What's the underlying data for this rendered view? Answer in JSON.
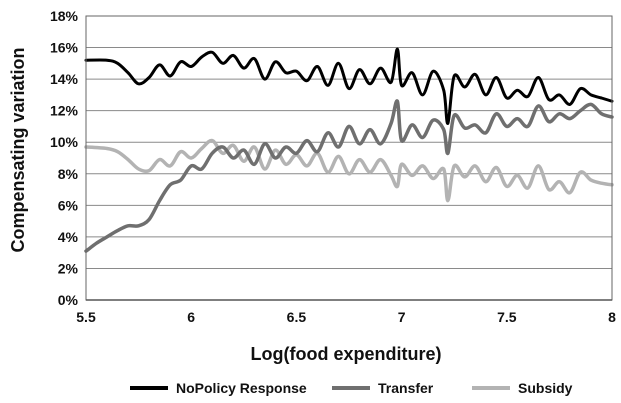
{
  "chart_data": {
    "type": "line",
    "title": "",
    "xlabel": "Log(food expenditure)",
    "ylabel": "Compensating variation",
    "xlim": [
      5.5,
      8
    ],
    "ylim": [
      0,
      0.18
    ],
    "x_ticks": [
      "5.5",
      "6",
      "6.5",
      "7",
      "7.5",
      "8"
    ],
    "y_ticks": [
      "0%",
      "2%",
      "4%",
      "6%",
      "8%",
      "10%",
      "12%",
      "14%",
      "16%",
      "18%"
    ],
    "grid": "horizontal",
    "legend_position": "bottom",
    "series": [
      {
        "name": "NoPolicy Response",
        "color": "#000000",
        "x": [
          5.5,
          5.6,
          5.65,
          5.7,
          5.75,
          5.8,
          5.85,
          5.9,
          5.95,
          6.0,
          6.05,
          6.1,
          6.15,
          6.2,
          6.25,
          6.3,
          6.35,
          6.4,
          6.45,
          6.5,
          6.55,
          6.6,
          6.65,
          6.7,
          6.75,
          6.8,
          6.85,
          6.9,
          6.95,
          6.98,
          7.0,
          7.05,
          7.1,
          7.15,
          7.2,
          7.22,
          7.25,
          7.3,
          7.35,
          7.4,
          7.45,
          7.5,
          7.55,
          7.6,
          7.65,
          7.7,
          7.75,
          7.8,
          7.85,
          7.9,
          7.95,
          8.0
        ],
        "y": [
          0.152,
          0.152,
          0.15,
          0.144,
          0.137,
          0.141,
          0.149,
          0.142,
          0.151,
          0.148,
          0.154,
          0.157,
          0.15,
          0.155,
          0.147,
          0.153,
          0.14,
          0.151,
          0.144,
          0.145,
          0.139,
          0.148,
          0.136,
          0.15,
          0.134,
          0.146,
          0.137,
          0.147,
          0.138,
          0.159,
          0.136,
          0.144,
          0.13,
          0.145,
          0.133,
          0.112,
          0.142,
          0.135,
          0.143,
          0.13,
          0.141,
          0.128,
          0.133,
          0.129,
          0.141,
          0.127,
          0.13,
          0.124,
          0.134,
          0.13,
          0.128,
          0.126
        ]
      },
      {
        "name": "Transfer",
        "color": "#6f6f6f",
        "x": [
          5.5,
          5.55,
          5.6,
          5.65,
          5.7,
          5.75,
          5.8,
          5.85,
          5.9,
          5.95,
          6.0,
          6.05,
          6.1,
          6.15,
          6.2,
          6.25,
          6.3,
          6.35,
          6.4,
          6.45,
          6.5,
          6.55,
          6.6,
          6.65,
          6.7,
          6.75,
          6.8,
          6.85,
          6.9,
          6.95,
          6.98,
          7.0,
          7.05,
          7.1,
          7.15,
          7.2,
          7.22,
          7.25,
          7.3,
          7.35,
          7.4,
          7.45,
          7.5,
          7.55,
          7.6,
          7.65,
          7.7,
          7.75,
          7.8,
          7.85,
          7.9,
          7.95,
          8.0
        ],
        "y": [
          0.031,
          0.036,
          0.04,
          0.044,
          0.047,
          0.047,
          0.051,
          0.063,
          0.073,
          0.076,
          0.085,
          0.083,
          0.093,
          0.097,
          0.09,
          0.095,
          0.086,
          0.099,
          0.09,
          0.097,
          0.093,
          0.101,
          0.094,
          0.106,
          0.097,
          0.11,
          0.099,
          0.108,
          0.099,
          0.112,
          0.126,
          0.101,
          0.111,
          0.103,
          0.114,
          0.108,
          0.093,
          0.117,
          0.109,
          0.111,
          0.106,
          0.118,
          0.11,
          0.115,
          0.11,
          0.123,
          0.113,
          0.118,
          0.115,
          0.12,
          0.124,
          0.118,
          0.116
        ]
      },
      {
        "name": "Subsidy",
        "color": "#b3b3b3",
        "x": [
          5.5,
          5.6,
          5.65,
          5.7,
          5.75,
          5.8,
          5.85,
          5.9,
          5.95,
          6.0,
          6.05,
          6.1,
          6.15,
          6.2,
          6.25,
          6.3,
          6.35,
          6.4,
          6.45,
          6.5,
          6.55,
          6.6,
          6.65,
          6.7,
          6.75,
          6.8,
          6.85,
          6.9,
          6.95,
          6.98,
          7.0,
          7.05,
          7.1,
          7.15,
          7.2,
          7.22,
          7.25,
          7.3,
          7.35,
          7.4,
          7.45,
          7.5,
          7.55,
          7.6,
          7.65,
          7.7,
          7.75,
          7.8,
          7.85,
          7.9,
          7.95,
          8.0
        ],
        "y": [
          0.097,
          0.096,
          0.094,
          0.089,
          0.083,
          0.082,
          0.089,
          0.085,
          0.094,
          0.09,
          0.096,
          0.101,
          0.093,
          0.098,
          0.088,
          0.097,
          0.083,
          0.095,
          0.086,
          0.092,
          0.085,
          0.093,
          0.081,
          0.091,
          0.08,
          0.089,
          0.081,
          0.089,
          0.079,
          0.072,
          0.086,
          0.079,
          0.085,
          0.077,
          0.083,
          0.063,
          0.085,
          0.078,
          0.085,
          0.075,
          0.084,
          0.072,
          0.079,
          0.071,
          0.085,
          0.07,
          0.075,
          0.068,
          0.081,
          0.076,
          0.074,
          0.073
        ]
      }
    ]
  }
}
